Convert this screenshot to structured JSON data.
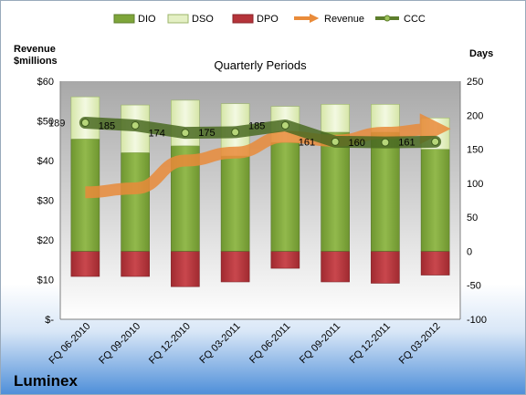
{
  "chart_data": {
    "type": "bar",
    "title": "Quarterly Periods",
    "brand": "Luminex",
    "left_axis_title_line1": "Revenue",
    "left_axis_title_line2": "$millions",
    "right_axis_title": "Days",
    "left_ylim": [
      0,
      60
    ],
    "left_ticks": [
      "$-",
      "$10",
      "$20",
      "$30",
      "$40",
      "$50",
      "$60"
    ],
    "right_ylim": [
      -100,
      250
    ],
    "right_ticks": [
      "-100",
      "-50",
      "0",
      "50",
      "100",
      "150",
      "200",
      "250"
    ],
    "categories": [
      "FQ 06-2010",
      "FQ 09-2010",
      "FQ 12-2010",
      "FQ 03-2011",
      "FQ 06-2011",
      "FQ 09-2011",
      "FQ 12-2011",
      "FQ 03-2012"
    ],
    "series": [
      {
        "name": "DIO",
        "axis": "right",
        "color": "#7ea53a",
        "values": [
          165,
          145,
          155,
          140,
          160,
          175,
          175,
          150
        ]
      },
      {
        "name": "DSO",
        "axis": "right",
        "color": "#e4f0c4",
        "values": [
          62,
          70,
          67,
          77,
          53,
          41,
          41,
          46
        ]
      },
      {
        "name": "DPO",
        "axis": "right",
        "color": "#b5343a",
        "values": [
          -37,
          -37,
          -52,
          -45,
          -25,
          -45,
          -47,
          -35
        ]
      },
      {
        "name": "Revenue",
        "axis": "left",
        "color": "#e98b3a",
        "values": [
          32,
          33,
          40,
          42,
          46,
          45,
          47,
          48
        ]
      },
      {
        "name": "CCC",
        "axis": "right",
        "color": "#5d7e2c",
        "values": [
          189,
          185,
          174,
          175,
          185,
          161,
          160,
          161
        ]
      }
    ],
    "ccc_labels": [
      "189",
      "185",
      "174",
      "175",
      "185",
      "161",
      "160",
      "161"
    ],
    "legend": [
      "DIO",
      "DSO",
      "DPO",
      "Revenue",
      "CCC"
    ],
    "legend_position": "top",
    "grid": false
  }
}
